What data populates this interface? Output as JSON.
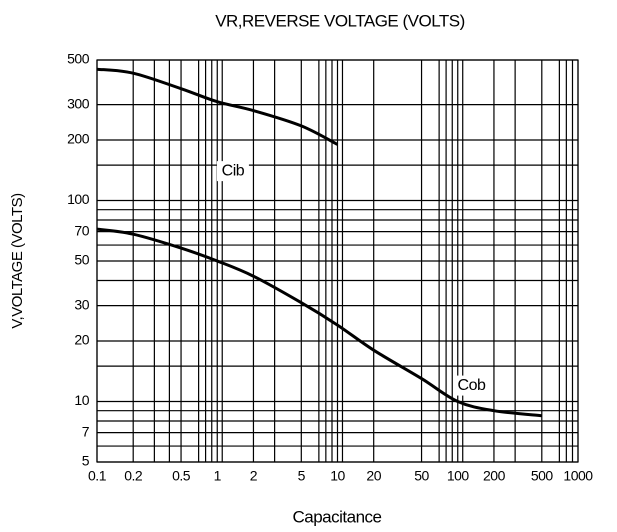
{
  "chart_data": {
    "type": "line",
    "title": "VR,REVERSE VOLTAGE (VOLTS)",
    "x_label": "Capacitance",
    "y_label": "V,VOLTAGE (VOLTS)",
    "log_x": true,
    "log_y": true,
    "grid": true,
    "color": "#000000",
    "xlim": [
      0.1,
      1000
    ],
    "ylim": [
      5,
      500
    ],
    "xticks": [
      0.1,
      0.2,
      0.5,
      1,
      2,
      5,
      10,
      20,
      50,
      100,
      200,
      500,
      1000
    ],
    "yticks": [
      5,
      7,
      10,
      20,
      30,
      50,
      70,
      100,
      200,
      300,
      500
    ],
    "xgrid": [
      0.3,
      0.4,
      0.7,
      0.8,
      0.9,
      1.1,
      3,
      7,
      8,
      9,
      11,
      70,
      80,
      90,
      110,
      300,
      700,
      800,
      900
    ],
    "ygrid": [
      6,
      8,
      9,
      15,
      40,
      60,
      80,
      90,
      150
    ],
    "series": [
      {
        "name": "Cib",
        "color": "#000000",
        "x": [
          0.1,
          0.2,
          0.5,
          1,
          2,
          5,
          10
        ],
        "values": [
          450,
          430,
          360,
          310,
          280,
          235,
          190
        ]
      },
      {
        "name": "Cob",
        "color": "#000000",
        "x": [
          0.1,
          0.2,
          0.5,
          1,
          2,
          5,
          10,
          20,
          50,
          100,
          200,
          500
        ],
        "values": [
          72,
          68,
          58,
          50,
          42,
          31,
          24,
          18,
          13,
          10,
          9,
          8.5
        ]
      }
    ]
  }
}
